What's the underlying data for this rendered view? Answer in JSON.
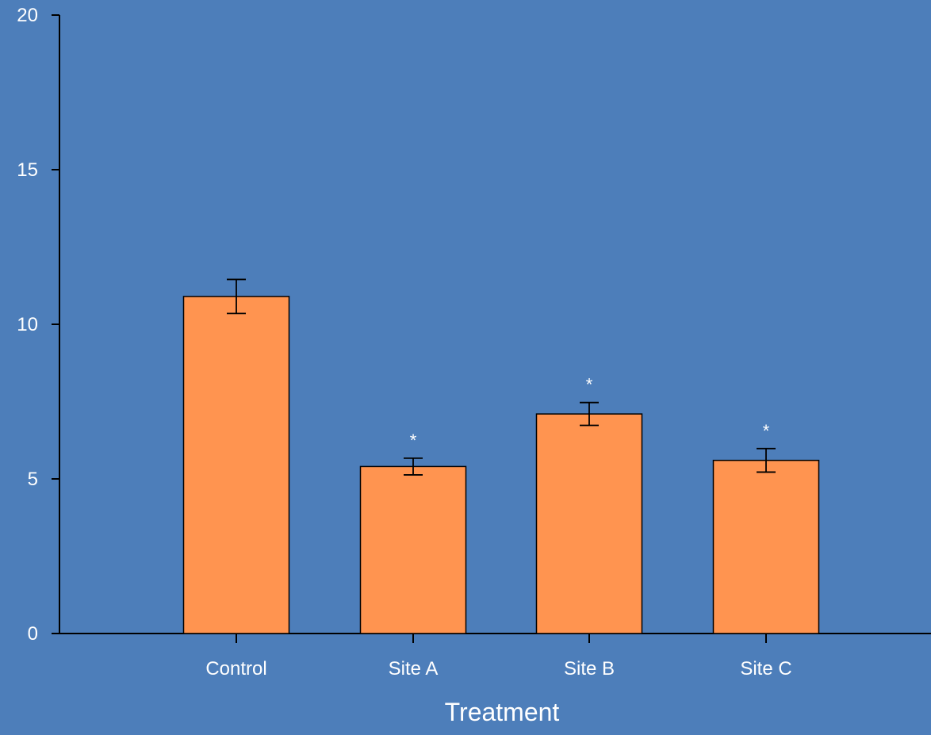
{
  "colors": {
    "background": "#4d7eba",
    "bar_fill": "#ff9450",
    "bar_stroke": "#000000",
    "axis": "#000000",
    "text": "#ffffff"
  },
  "chart_data": {
    "type": "bar",
    "categories": [
      "Control",
      "Site A",
      "Site B",
      "Site C"
    ],
    "values": [
      10.9,
      5.4,
      7.1,
      5.6
    ],
    "errors": [
      0.55,
      0.27,
      0.37,
      0.38
    ],
    "significance": [
      "",
      "*",
      "*",
      "*"
    ],
    "title": "",
    "xlabel": "Treatment",
    "ylabel": "",
    "ylim": [
      0,
      20
    ],
    "yticks": [
      0,
      5,
      10,
      15,
      20
    ],
    "grid": false,
    "legend": "none"
  }
}
